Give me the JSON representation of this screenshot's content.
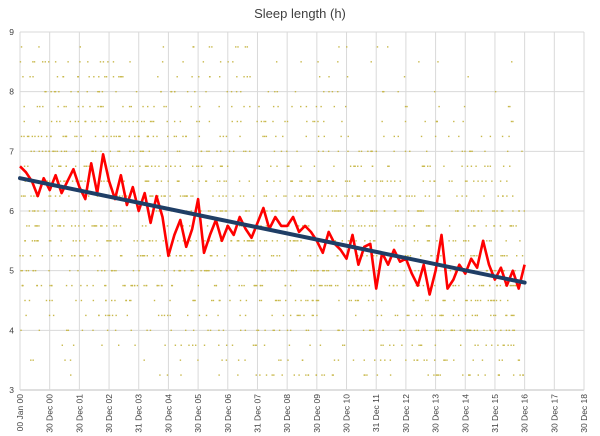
{
  "chart_data": {
    "type": "scatter",
    "title": "Sleep length (h)",
    "xlabel": "",
    "ylabel": "",
    "ylim": [
      3,
      9
    ],
    "y_ticks": [
      3,
      4,
      5,
      6,
      7,
      8,
      9
    ],
    "x_domain": [
      "2000-01-00",
      "2018-12-30"
    ],
    "x_tick_labels": [
      "00 Jan 00",
      "30 Dec 00",
      "30 Dec 01",
      "30 Dec 02",
      "31 Dec 03",
      "30 Dec 04",
      "30 Dec 05",
      "30 Dec 06",
      "31 Dec 07",
      "30 Dec 08",
      "30 Dec 09",
      "30 Dec 10",
      "31 Dec 11",
      "30 Dec 12",
      "30 Dec 13",
      "30 Dec 14",
      "31 Dec 15",
      "30 Dec 16",
      "30 Dec 17",
      "30 Dec 18"
    ],
    "grid": true,
    "legend": "none",
    "series": [
      {
        "kind": "scatter",
        "color": "#c8b84a",
        "note_points": "daily sleep values scattered roughly between 3 and 9 hours",
        "points_x_year": [],
        "points_y": []
      },
      {
        "kind": "line",
        "color": "#ff0000",
        "x_year": [
          2000.0,
          2000.2,
          2000.4,
          2000.6,
          2000.8,
          2001.0,
          2001.2,
          2001.4,
          2001.6,
          2001.8,
          2002.0,
          2002.2,
          2002.4,
          2002.6,
          2002.8,
          2003.0,
          2003.2,
          2003.4,
          2003.6,
          2003.8,
          2004.0,
          2004.2,
          2004.4,
          2004.6,
          2004.8,
          2005.0,
          2005.2,
          2005.4,
          2005.6,
          2005.8,
          2006.0,
          2006.2,
          2006.4,
          2006.6,
          2006.8,
          2007.0,
          2007.2,
          2007.4,
          2007.6,
          2007.8,
          2008.0,
          2008.2,
          2008.4,
          2008.6,
          2008.8,
          2009.0,
          2009.2,
          2009.4,
          2009.6,
          2009.8,
          2010.0,
          2010.2,
          2010.4,
          2010.6,
          2010.8,
          2011.0,
          2011.2,
          2011.4,
          2011.6,
          2011.8,
          2012.0,
          2012.2,
          2012.4,
          2012.6,
          2012.8,
          2013.0,
          2013.2,
          2013.4,
          2013.6,
          2013.8,
          2014.0,
          2014.2,
          2014.4,
          2014.6,
          2014.8,
          2015.0,
          2015.2,
          2015.4,
          2015.6,
          2015.8,
          2016.0,
          2016.2,
          2016.4,
          2016.6,
          2016.8,
          2017.0
        ],
        "y": [
          6.75,
          6.65,
          6.5,
          6.25,
          6.55,
          6.35,
          6.6,
          6.3,
          6.5,
          6.7,
          6.4,
          6.2,
          6.8,
          6.3,
          6.95,
          6.5,
          6.2,
          6.6,
          6.1,
          6.4,
          6.0,
          6.3,
          5.8,
          6.25,
          5.9,
          5.25,
          5.6,
          5.85,
          5.4,
          5.7,
          6.2,
          5.3,
          5.6,
          5.85,
          5.5,
          5.75,
          5.6,
          5.9,
          5.7,
          5.55,
          5.8,
          6.05,
          5.7,
          5.9,
          5.75,
          5.75,
          5.9,
          5.65,
          5.75,
          5.65,
          5.5,
          5.3,
          5.65,
          5.45,
          5.35,
          5.2,
          5.6,
          5.1,
          5.4,
          5.45,
          4.7,
          5.3,
          5.1,
          5.35,
          5.15,
          5.2,
          4.95,
          4.75,
          5.1,
          4.6,
          5.0,
          5.6,
          4.7,
          4.85,
          5.1,
          4.95,
          5.2,
          5.05,
          5.5,
          5.1,
          4.85,
          5.05,
          4.75,
          5.0,
          4.7,
          5.1
        ]
      },
      {
        "kind": "trend",
        "color": "#1f3e66",
        "x_year": [
          2000.0,
          2017.0
        ],
        "y": [
          6.55,
          4.8
        ]
      }
    ]
  }
}
